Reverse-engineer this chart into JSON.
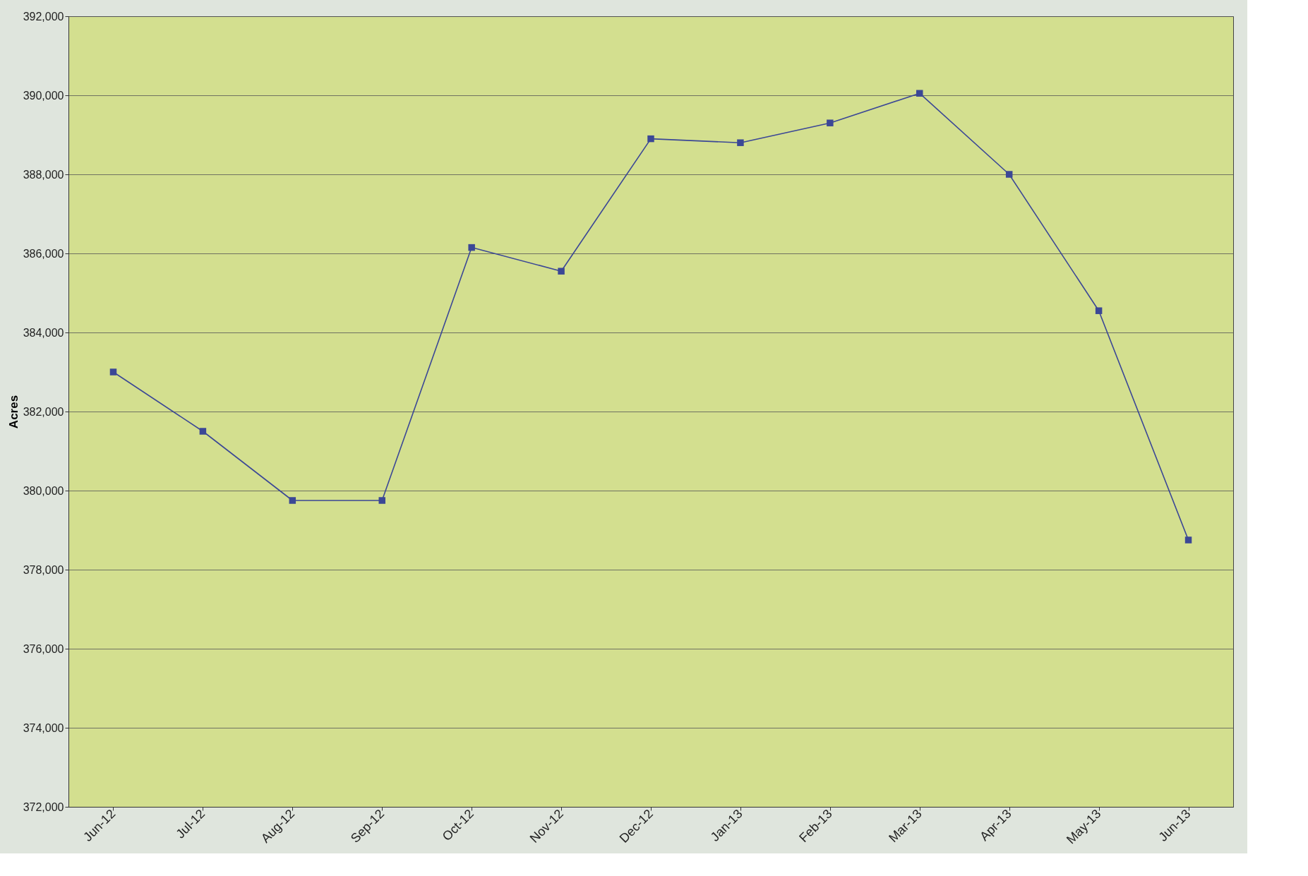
{
  "chart_data": {
    "type": "line",
    "ylabel": "Acres",
    "categories": [
      "Jun-12",
      "Jul-12",
      "Aug-12",
      "Sep-12",
      "Oct-12",
      "Nov-12",
      "Dec-12",
      "Jan-13",
      "Feb-13",
      "Mar-13",
      "Apr-13",
      "May-13",
      "Jun-13"
    ],
    "series": [
      {
        "color": "#3b4796",
        "values": [
          383000,
          381500,
          379750,
          379750,
          386150,
          385550,
          388900,
          388800,
          389300,
          390050,
          388000,
          384550,
          378750
        ]
      }
    ],
    "ylim": [
      372000,
      392000
    ],
    "yticks": [
      {
        "value": 372000,
        "label": "372,000"
      },
      {
        "value": 374000,
        "label": "374,000"
      },
      {
        "value": 376000,
        "label": "376,000"
      },
      {
        "value": 378000,
        "label": "378,000"
      },
      {
        "value": 380000,
        "label": "380,000"
      },
      {
        "value": 382000,
        "label": "382,000"
      },
      {
        "value": 384000,
        "label": "384,000"
      },
      {
        "value": 386000,
        "label": "386,000"
      },
      {
        "value": 388000,
        "label": "388,000"
      },
      {
        "value": 390000,
        "label": "390,000"
      },
      {
        "value": 392000,
        "label": "392,000"
      }
    ],
    "grid": "y",
    "legend": false,
    "marker": "square",
    "line_style": "solid"
  }
}
